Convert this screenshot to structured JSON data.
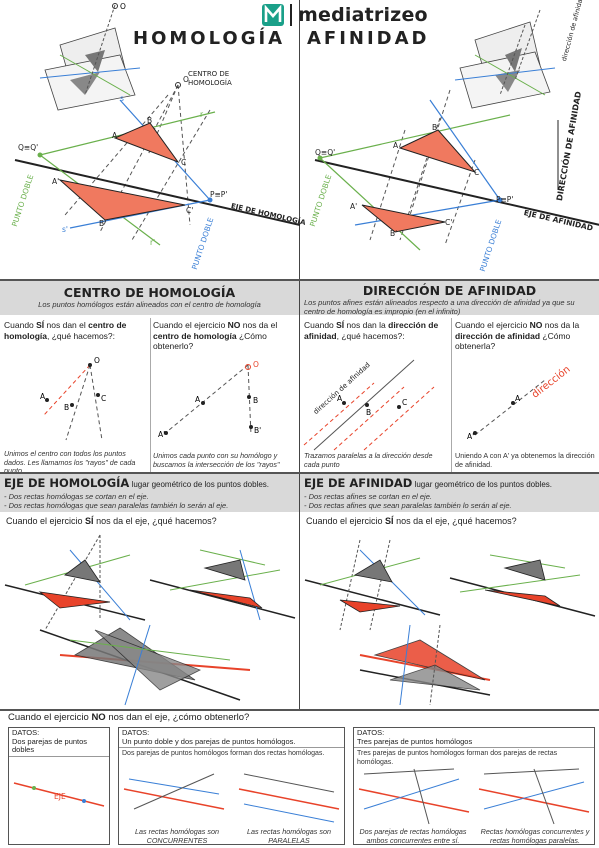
{
  "brand": {
    "name": "mediatrizeo"
  },
  "titles": {
    "left": "HOMOLOGÍA",
    "right": "AFINIDAD"
  },
  "top_left": {
    "center_label_1": "CENTRO DE",
    "center_label_2": "HOMOLOGÍA",
    "point_o": "O",
    "q_label": "Q≡Q'",
    "p_label": "P≡P'",
    "axis_label": "EJE DE HOMOLOGÍA",
    "double_point_1": "PUNTO DOBLE",
    "double_point_2": "PUNTO DOBLE",
    "r": "r",
    "r2": "r'",
    "s": "s",
    "s2": "s'",
    "a": "A",
    "b": "B",
    "c": "C",
    "a2": "A'",
    "b2": "B'",
    "c2": "C'"
  },
  "top_right": {
    "direction_top": "dirección de afinidad",
    "direction_label": "DIRECCIÓN DE AFINIDAD",
    "q_label": "Q≡Q'",
    "p_label": "P≡P'",
    "axis_label": "EJE DE AFINIDAD",
    "double_point_1": "PUNTO DOBLE",
    "double_point_2": "PUNTO DOBLE",
    "a": "A",
    "b": "B",
    "c": "C",
    "a2": "A'",
    "b2": "B'",
    "c2": "C'"
  },
  "section_center": {
    "title": "CENTRO DE HOMOLOGÍA",
    "subtitle": "Los puntos homólogos están  alineados con el centro de homología",
    "yes_pre": "Cuando ",
    "yes_bold": "SÍ",
    "yes_mid": " nos dan el ",
    "yes_bold2": "centro de homología",
    "yes_post": ", ¿qué hacemos?:",
    "yes_caption": "Unimos el centro con todos los puntos dados. Les llamamos los \"rayos\" de cada punto.",
    "no_pre": "Cuando el ejercicio ",
    "no_bold": "NO",
    "no_mid": " nos da el ",
    "no_bold2": "centro de homología",
    "no_post": " ¿Cómo obtenerlo?",
    "no_caption": "Unimos cada punto con su homólogo y buscamos la intersección de los \"rayos\""
  },
  "section_direction": {
    "title": "DIRECCIÓN DE AFINIDAD",
    "subtitle": "Los puntos afines están alineados respecto a una dirección de afinidad ya que su centro de homología es impropio (en el infinito)",
    "yes_pre": "Cuando ",
    "yes_bold": "SÍ",
    "yes_mid": " nos dan la ",
    "yes_bold2": "dirección de afinidad",
    "yes_post": ", ¿qué hacemos?:",
    "yes_caption": "Trazamos paralelas a la dirección desde cada punto",
    "diag_label": "dirección de afinidad",
    "no_pre": "Cuando el ejercicio ",
    "no_bold": "NO",
    "no_mid": " nos da la ",
    "no_bold2": "dirección de afinidad",
    "no_post": " ¿Cómo obtenerla?",
    "no_caption": "Uniendo A con A' ya obtenemos la dirección de afinidad.",
    "dir_word": "dirección"
  },
  "section_axis_h": {
    "title": "EJE DE HOMOLOGÍA",
    "title_rest": " lugar geométrico de los puntos dobles.",
    "line1": "- Dos rectas homólogas se cortan en el eje.",
    "line2": "- Dos rectas homólogas que sean paralelas también lo serán al eje.",
    "question_pre": "Cuando el ejercicio ",
    "question_bold": "SÍ",
    "question_post": " nos da el eje, ¿qué hacemos?"
  },
  "section_axis_a": {
    "title": "EJE DE AFINIDAD",
    "title_rest": " lugar geométrico de los puntos dobles.",
    "line1": "- Dos rectas afines se cortan en el eje.",
    "line2": "- Dos rectas afines que sean paralelas también lo serán al eje.",
    "question_pre": "Cuando el ejercicio ",
    "question_bold": "SÍ",
    "question_post": " nos da el eje, ¿qué hacemos?"
  },
  "bottom": {
    "question_pre": "Cuando el ejercicio ",
    "question_bold": "NO",
    "question_post": " nos dan el eje, ¿cómo obtenerlo?",
    "box1_title": "DATOS:",
    "box1_text": "Dos parejas de puntos dobles",
    "box2_title": "DATOS:",
    "box2_text": "Un punto doble  y dos parejas de puntos homólogos.",
    "box2_sub": "Dos parejas de puntos homólogos forman dos rectas homólogas.",
    "box2_cap1_a": "Las rectas homólogas son",
    "box2_cap1_b": "CONCURRENTES",
    "box2_cap2_a": "Las rectas homólogas son",
    "box2_cap2_b": "PARALELAS",
    "box3_title": "DATOS:",
    "box3_text": "Tres parejas de puntos homólogos",
    "box3_sub": "Tres parejas de puntos homólogos forman dos parejas de rectas homólogas.",
    "box3_cap1": "Dos parejas de rectas homólogas ambos concurrentes entre sí.",
    "box3_cap2": "Rectas homólogas concurrentes y rectas homólogas paralelas.",
    "eje": "EJE"
  },
  "colors": {
    "red": "#e8432a",
    "salmon": "#f0795f",
    "green": "#6ab04c",
    "blue": "#3a7fd6",
    "grey": "#d9d9d9",
    "dark": "#555555",
    "brand": "#1aa089"
  }
}
